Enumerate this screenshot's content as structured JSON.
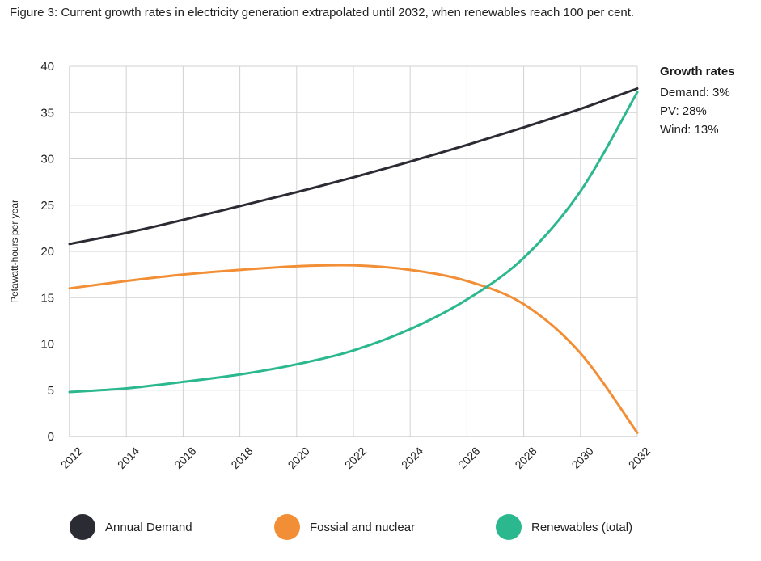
{
  "figure_title": "Figure 3: Current growth rates in electricity generation extrapolated until 2032, when renewables reach 100 per cent.",
  "growth_rates": {
    "title": "Growth rates",
    "items": [
      "Demand: 3%",
      "PV: 28%",
      "Wind: 13%"
    ]
  },
  "colors": {
    "demand": "#2b2b33",
    "fossil": "#f28f36",
    "renewables": "#2cb88e",
    "grid": "#d2d2d2"
  },
  "chart_data": {
    "type": "line",
    "title": "Figure 3: Current growth rates in electricity generation extrapolated until 2032, when renewables reach 100 per cent.",
    "xlabel": "",
    "ylabel": "Petawatt-hours per year",
    "xlim": [
      2012,
      2032
    ],
    "ylim": [
      0,
      40
    ],
    "x_ticks": [
      "2012",
      "2014",
      "2016",
      "2018",
      "2020",
      "2022",
      "2024",
      "2026",
      "2028",
      "2030",
      "2032"
    ],
    "y_ticks": [
      "0",
      "5",
      "10",
      "15",
      "20",
      "25",
      "30",
      "35",
      "40"
    ],
    "grid": true,
    "legend_position": "bottom",
    "x": [
      2012,
      2014,
      2016,
      2018,
      2020,
      2022,
      2024,
      2026,
      2028,
      2030,
      2032
    ],
    "series": [
      {
        "name": "Annual Demand",
        "color_key": "demand",
        "values": [
          20.8,
          22.0,
          23.4,
          24.9,
          26.4,
          28.0,
          29.7,
          31.5,
          33.4,
          35.4,
          37.6
        ]
      },
      {
        "name": "Fossial and nuclear",
        "color_key": "fossil",
        "values": [
          16.0,
          16.8,
          17.5,
          18.0,
          18.4,
          18.5,
          18.0,
          16.8,
          14.3,
          9.0,
          0.4
        ]
      },
      {
        "name": "Renewables (total)",
        "color_key": "renewables",
        "values": [
          4.8,
          5.2,
          5.9,
          6.7,
          7.8,
          9.3,
          11.6,
          14.8,
          19.3,
          26.5,
          37.2
        ]
      }
    ]
  }
}
